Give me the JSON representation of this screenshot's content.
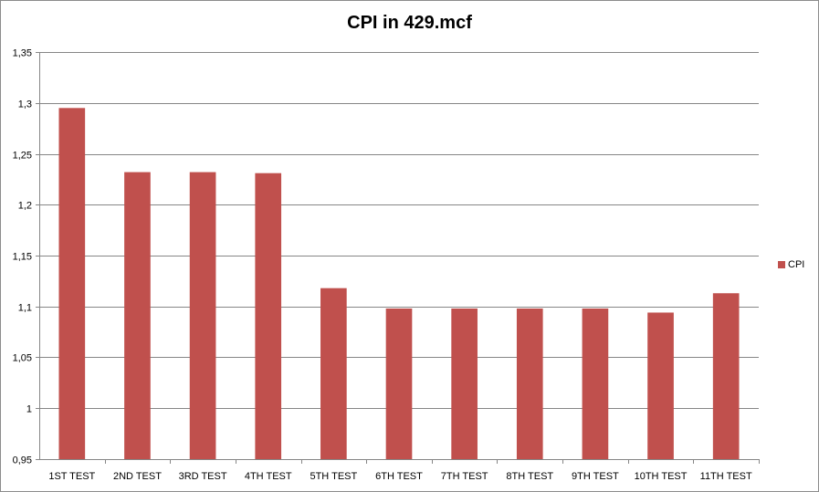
{
  "chart_data": {
    "type": "bar",
    "title": "CPI in 429.mcf",
    "xlabel": "",
    "ylabel": "",
    "categories": [
      "1ST TEST",
      "2ND TEST",
      "3RD TEST",
      "4TH TEST",
      "5TH TEST",
      "6TH TEST",
      "7TH TEST",
      "8TH TEST",
      "9TH TEST",
      "10TH TEST",
      "11TH TEST"
    ],
    "series": [
      {
        "name": "CPI",
        "color": "#c0504d",
        "values": [
          1.295,
          1.232,
          1.232,
          1.231,
          1.118,
          1.098,
          1.098,
          1.098,
          1.098,
          1.094,
          1.113
        ]
      }
    ],
    "ylim": [
      0.95,
      1.35
    ],
    "yticks": [
      0.95,
      1.0,
      1.05,
      1.1,
      1.15,
      1.2,
      1.25,
      1.3,
      1.35
    ],
    "ytick_labels": [
      "0,95",
      "1",
      "1,05",
      "1,1",
      "1,15",
      "1,2",
      "1,25",
      "1,3",
      "1,35"
    ],
    "grid": true,
    "legend_position": "right"
  }
}
